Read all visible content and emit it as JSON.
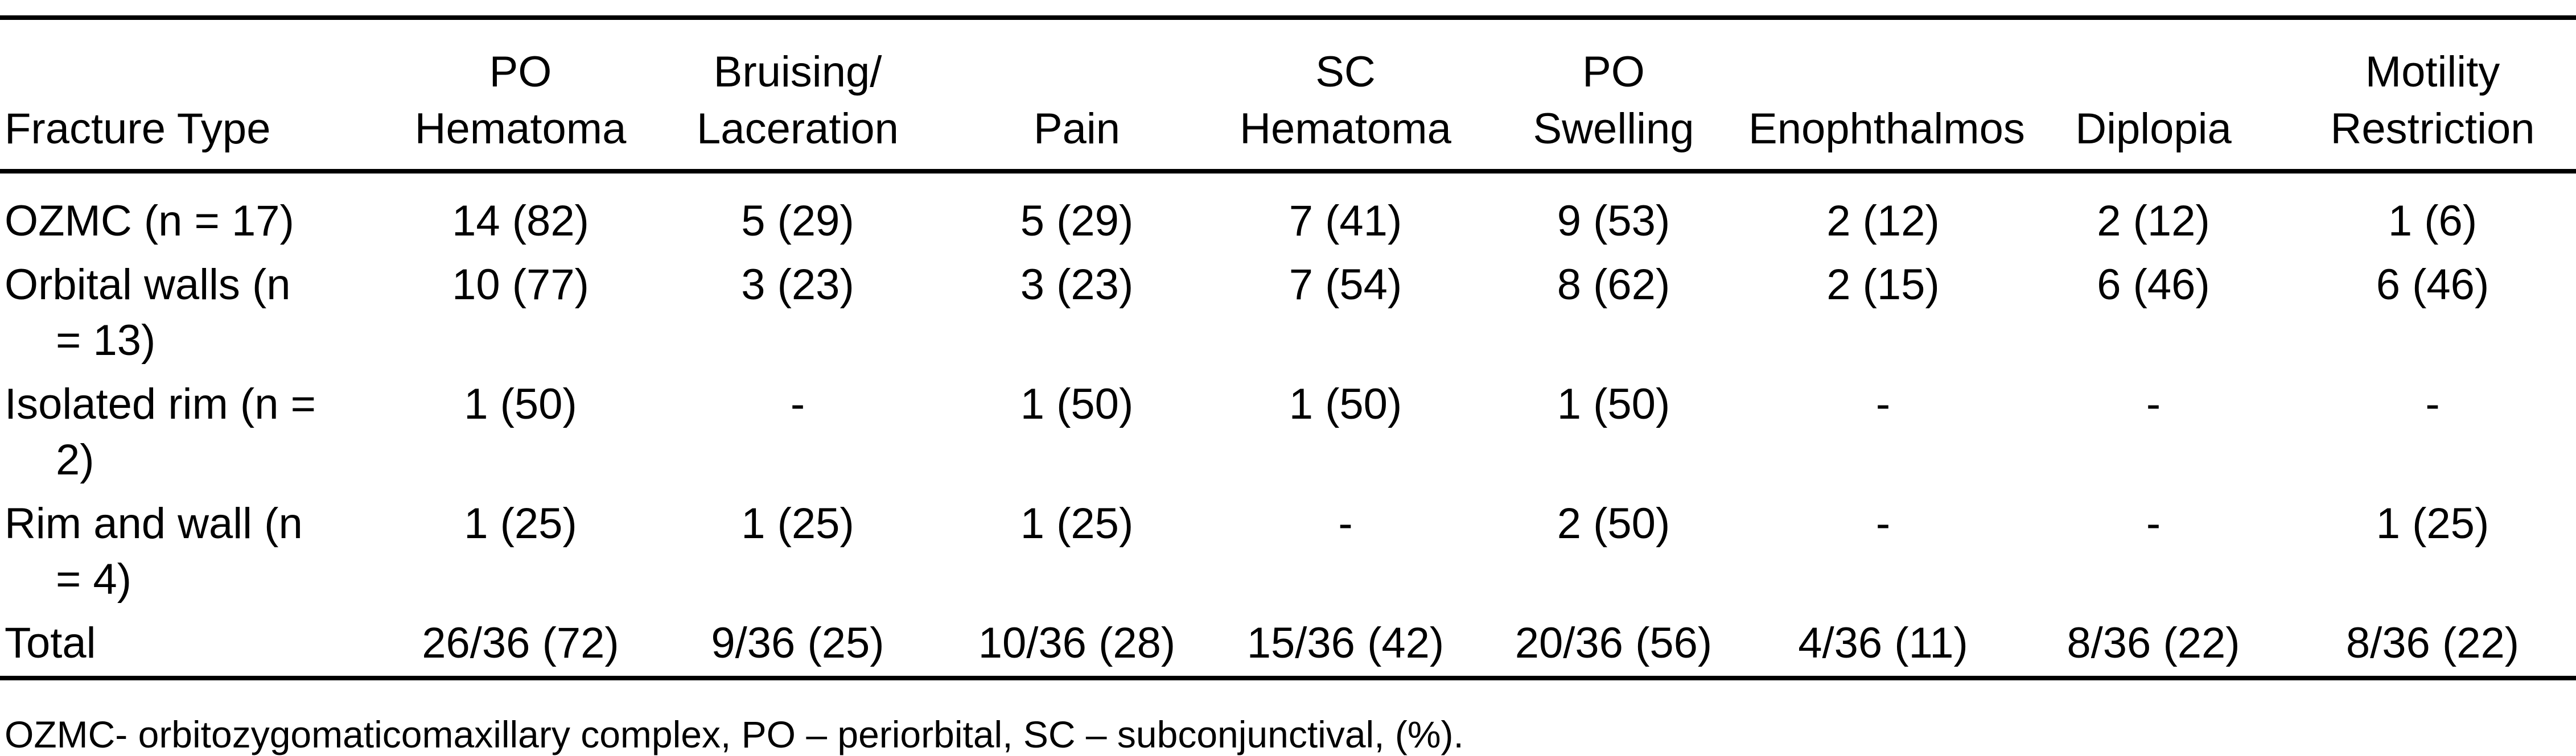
{
  "table": {
    "columns": [
      "Fracture Type",
      "PO\nHematoma",
      "Bruising/\nLaceration",
      "Pain",
      "SC\nHematoma",
      "PO\nSwelling",
      "Enophthalmos",
      "Diplopia",
      "Motility\nRestriction"
    ],
    "rows": [
      {
        "label": "OZMC (n = 17)",
        "values": [
          "14 (82)",
          "5 (29)",
          "5 (29)",
          "7 (41)",
          "9 (53)",
          "2 (12)",
          "2 (12)",
          "1 (6)"
        ]
      },
      {
        "label": "Orbital walls (n\n= 13)",
        "values": [
          "10 (77)",
          "3 (23)",
          "3 (23)",
          "7 (54)",
          "8 (62)",
          "2 (15)",
          "6 (46)",
          "6 (46)"
        ]
      },
      {
        "label": "Isolated rim (n =\n2)",
        "values": [
          "1 (50)",
          "-",
          "1 (50)",
          "1 (50)",
          "1 (50)",
          "-",
          "-",
          "-"
        ]
      },
      {
        "label": "Rim and wall (n\n= 4)",
        "values": [
          "1 (25)",
          "1 (25)",
          "1 (25)",
          "-",
          "2 (50)",
          "-",
          "-",
          "1 (25)"
        ]
      },
      {
        "label": "Total",
        "values": [
          "26/36 (72)",
          "9/36 (25)",
          "10/36 (28)",
          "15/36 (42)",
          "20/36 (56)",
          "4/36 (11)",
          "8/36 (22)",
          "8/36 (22)"
        ]
      }
    ],
    "footnote": "OZMC- orbitozygomaticomaxillary complex, PO – periorbital, SC – subconjunctival, (%)."
  }
}
